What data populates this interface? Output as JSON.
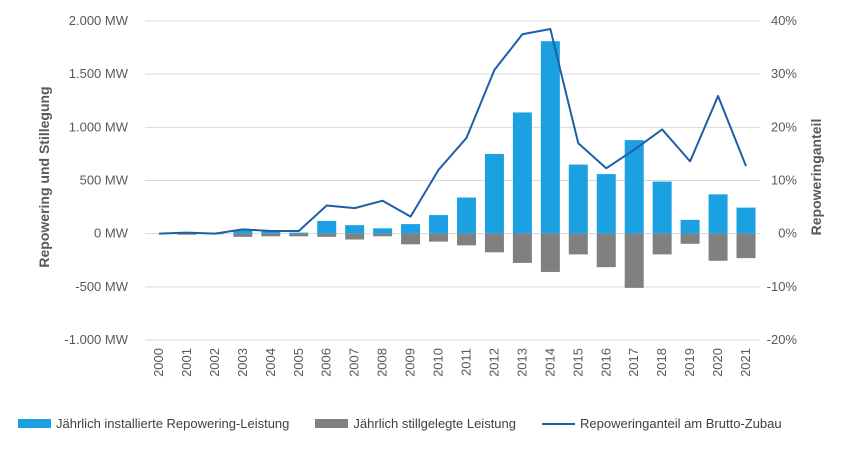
{
  "chart_data": {
    "type": "bar",
    "categories": [
      "2000",
      "2001",
      "2002",
      "2003",
      "2004",
      "2005",
      "2006",
      "2007",
      "2008",
      "2009",
      "2010",
      "2011",
      "2012",
      "2013",
      "2014",
      "2015",
      "2016",
      "2017",
      "2018",
      "2019",
      "2020",
      "2021"
    ],
    "series": [
      {
        "name": "Jährlich installierte Repowering-Leistung",
        "type": "bar",
        "axis": "left",
        "color": "#1ba1e2",
        "values": [
          0,
          5,
          0,
          30,
          20,
          10,
          120,
          80,
          50,
          90,
          175,
          340,
          750,
          1140,
          1810,
          650,
          560,
          880,
          490,
          130,
          370,
          245
        ]
      },
      {
        "name": "Jährlich stillgelegte Leistung",
        "type": "bar",
        "axis": "left",
        "color": "#808080",
        "values": [
          0,
          -10,
          -5,
          -30,
          -25,
          -25,
          -30,
          -55,
          -25,
          -100,
          -75,
          -110,
          -175,
          -275,
          -360,
          -195,
          -315,
          -510,
          -195,
          -95,
          -255,
          -230
        ]
      },
      {
        "name": "Repoweringanteil am Brutto-Zubau",
        "type": "line",
        "axis": "right",
        "color": "#1f5ea8",
        "values": [
          0,
          0.2,
          0,
          0.8,
          0.5,
          0.5,
          5.3,
          4.8,
          6.2,
          3.2,
          12.0,
          18.0,
          30.8,
          37.5,
          38.5,
          17.0,
          12.3,
          15.8,
          19.6,
          13.6,
          25.9,
          12.7
        ]
      }
    ],
    "ylabel": "Repowering und Stillegung",
    "y2label": "Repoweringanteil",
    "ylim": [
      -1000,
      2000
    ],
    "y2lim": [
      -20,
      40
    ],
    "yticks": [
      "-1.000 MW",
      "-500 MW",
      "0 MW",
      "500 MW",
      "1.000 MW",
      "1.500 MW",
      "2.000 MW"
    ],
    "y2ticks": [
      "-20%",
      "-10%",
      "0%",
      "10%",
      "20%",
      "30%",
      "40%"
    ],
    "grid": true,
    "legend_position": "bottom"
  },
  "colors": {
    "bar_blue": "#1ba1e2",
    "bar_grey": "#808080",
    "line": "#1f5ea8",
    "grid": "#d9d9d9",
    "text": "#595959"
  }
}
